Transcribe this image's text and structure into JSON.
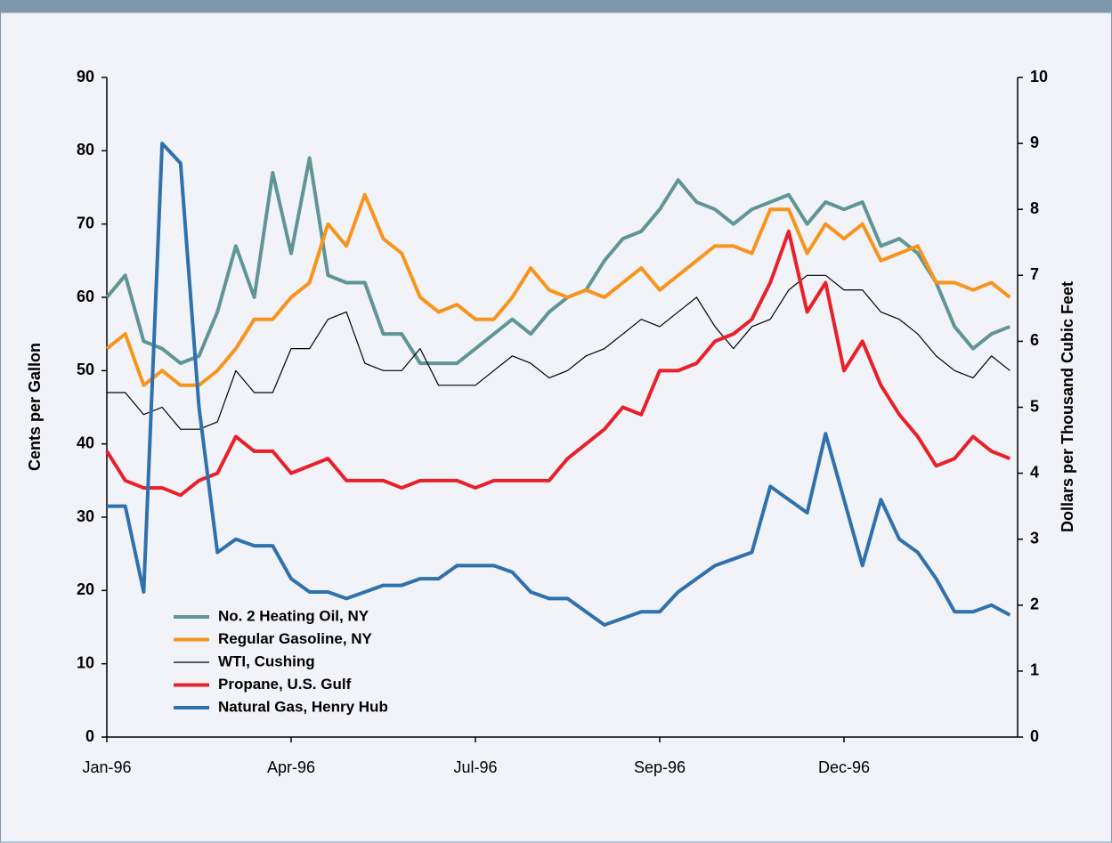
{
  "chart_data": {
    "type": "line",
    "categories": [
      "Jan-96",
      null,
      null,
      null,
      null,
      null,
      null,
      null,
      null,
      null,
      "Apr-96",
      null,
      null,
      null,
      null,
      null,
      null,
      null,
      null,
      null,
      "Jul-96",
      null,
      null,
      null,
      null,
      null,
      null,
      null,
      null,
      null,
      "Sep-96",
      null,
      null,
      null,
      null,
      null,
      null,
      null,
      null,
      null,
      "Dec-96",
      null,
      null,
      null,
      null,
      null,
      null,
      null,
      null,
      null
    ],
    "y_label": "Cents per Gallon",
    "y2_label": "Dollars per Thousand Cubic Feet",
    "ylim": [
      0,
      90
    ],
    "yticks": [
      0,
      10,
      20,
      30,
      40,
      50,
      60,
      70,
      80,
      90
    ],
    "y2lim": [
      0,
      10
    ],
    "y2ticks": [
      0,
      1,
      2,
      3,
      4,
      5,
      6,
      7,
      8,
      9,
      10
    ],
    "series": [
      {
        "name": "No. 2 Heating Oil, NY",
        "color": "#5f9595",
        "values": [
          60,
          63,
          54,
          53,
          51,
          52,
          58,
          67,
          60,
          77,
          66,
          79,
          63,
          62,
          62,
          55,
          55,
          51,
          51,
          51,
          53,
          55,
          57,
          55,
          58,
          60,
          61,
          65,
          68,
          69,
          72,
          76,
          73,
          72,
          70,
          72,
          73,
          74,
          70,
          73,
          72,
          73,
          67,
          68,
          66,
          62,
          56,
          53,
          55,
          56
        ]
      },
      {
        "name": "Regular Gasoline, NY",
        "color": "#f7941d",
        "values": [
          53,
          55,
          48,
          50,
          48,
          48,
          50,
          53,
          57,
          57,
          60,
          62,
          70,
          67,
          74,
          68,
          66,
          60,
          58,
          59,
          57,
          57,
          60,
          64,
          61,
          60,
          61,
          60,
          62,
          64,
          61,
          63,
          65,
          67,
          67,
          66,
          72,
          72,
          66,
          70,
          68,
          70,
          65,
          66,
          67,
          62,
          62,
          61,
          62,
          60
        ]
      },
      {
        "name": "WTI, Cushing",
        "color": "#000000",
        "values": [
          47,
          47,
          44,
          45,
          42,
          42,
          43,
          50,
          47,
          47,
          53,
          53,
          57,
          58,
          51,
          50,
          50,
          53,
          48,
          48,
          48,
          50,
          52,
          51,
          49,
          50,
          52,
          53,
          55,
          57,
          56,
          58,
          60,
          56,
          53,
          56,
          57,
          61,
          63,
          63,
          61,
          61,
          58,
          57,
          55,
          52,
          50,
          49,
          52,
          50
        ]
      },
      {
        "name": "Propane, U.S. Gulf",
        "color": "#e8202a",
        "values": [
          39,
          35,
          34,
          34,
          33,
          35,
          36,
          41,
          39,
          39,
          36,
          37,
          38,
          35,
          35,
          35,
          34,
          35,
          35,
          35,
          34,
          35,
          35,
          35,
          35,
          38,
          40,
          42,
          45,
          44,
          50,
          50,
          51,
          54,
          55,
          57,
          62,
          69,
          58,
          62,
          50,
          54,
          48,
          44,
          41,
          37,
          38,
          41,
          39,
          38
        ]
      },
      {
        "name": "Natural Gas, Henry Hub",
        "color": "#2f71ad",
        "axis": "y2",
        "values": [
          3.5,
          3.5,
          2.2,
          9.0,
          8.7,
          5.0,
          2.8,
          3.0,
          2.9,
          2.9,
          2.4,
          2.2,
          2.2,
          2.1,
          2.2,
          2.3,
          2.3,
          2.4,
          2.4,
          2.6,
          2.6,
          2.6,
          2.5,
          2.2,
          2.1,
          2.1,
          1.9,
          1.7,
          1.8,
          1.9,
          1.9,
          2.2,
          2.4,
          2.6,
          2.7,
          2.8,
          3.8,
          3.6,
          3.4,
          4.6,
          3.6,
          2.6,
          3.6,
          3.0,
          2.8,
          2.4,
          1.9,
          1.9,
          2.0,
          1.85
        ]
      }
    ]
  }
}
